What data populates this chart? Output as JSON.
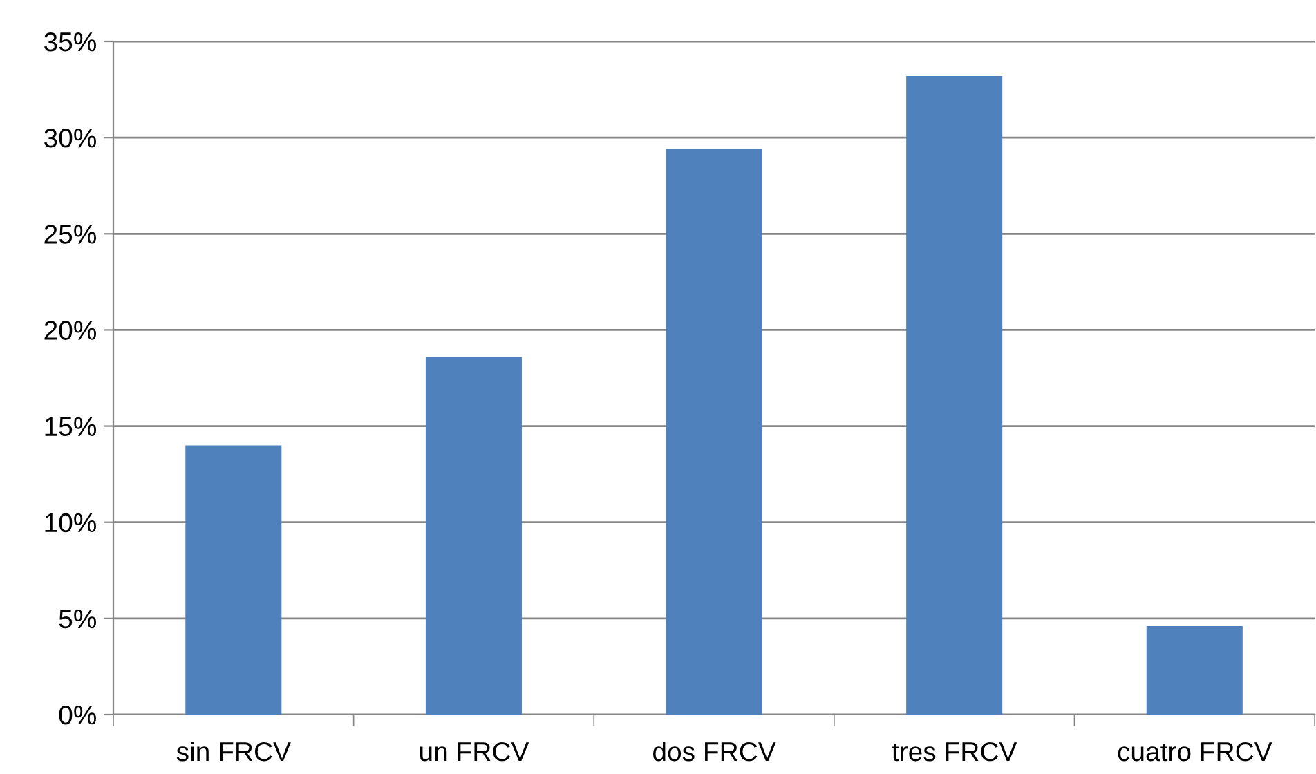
{
  "chart_data": {
    "type": "bar",
    "categories": [
      "sin FRCV",
      "un FRCV",
      "dos FRCV",
      "tres FRCV",
      "cuatro FRCV"
    ],
    "values": [
      14.0,
      18.6,
      29.4,
      33.2,
      4.6
    ],
    "color": "#4f81bd",
    "ylim": [
      0,
      35
    ],
    "yticks": [
      {
        "value": 0,
        "label": "0%"
      },
      {
        "value": 5,
        "label": "5%"
      },
      {
        "value": 10,
        "label": "10%"
      },
      {
        "value": 15,
        "label": "15%"
      },
      {
        "value": 20,
        "label": "20%"
      },
      {
        "value": 25,
        "label": "25%"
      },
      {
        "value": 30,
        "label": "30%"
      },
      {
        "value": 35,
        "label": "35%"
      }
    ],
    "grid": "y",
    "legend": false
  }
}
